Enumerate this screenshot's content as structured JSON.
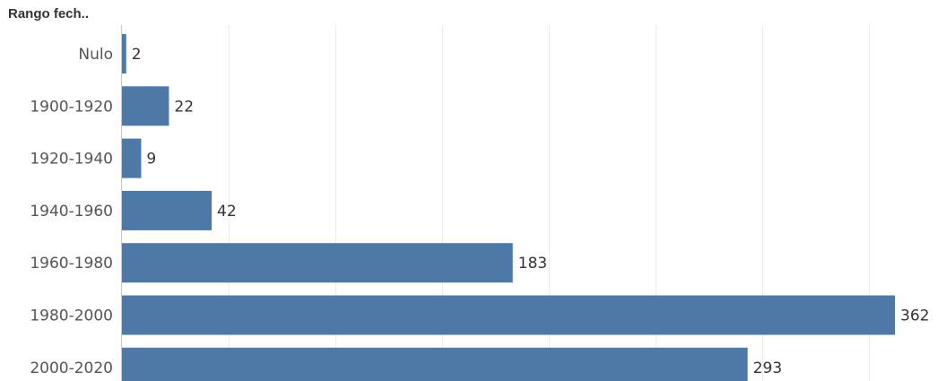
{
  "chart_data": {
    "type": "bar",
    "orientation": "horizontal",
    "title": "Rango fech..",
    "categories": [
      "Nulo",
      "1900-1920",
      "1920-1940",
      "1940-1960",
      "1960-1980",
      "1980-2000",
      "2000-2020"
    ],
    "values": [
      2,
      22,
      9,
      42,
      183,
      362,
      293
    ],
    "data_labels": [
      "2",
      "22",
      "9",
      "42",
      "183",
      "362",
      "293"
    ],
    "xlim": [
      0,
      362
    ],
    "x_gridlines": [
      50,
      100,
      150,
      200,
      250,
      300,
      350
    ],
    "grid": true,
    "bar_color": "#4e79a7"
  }
}
